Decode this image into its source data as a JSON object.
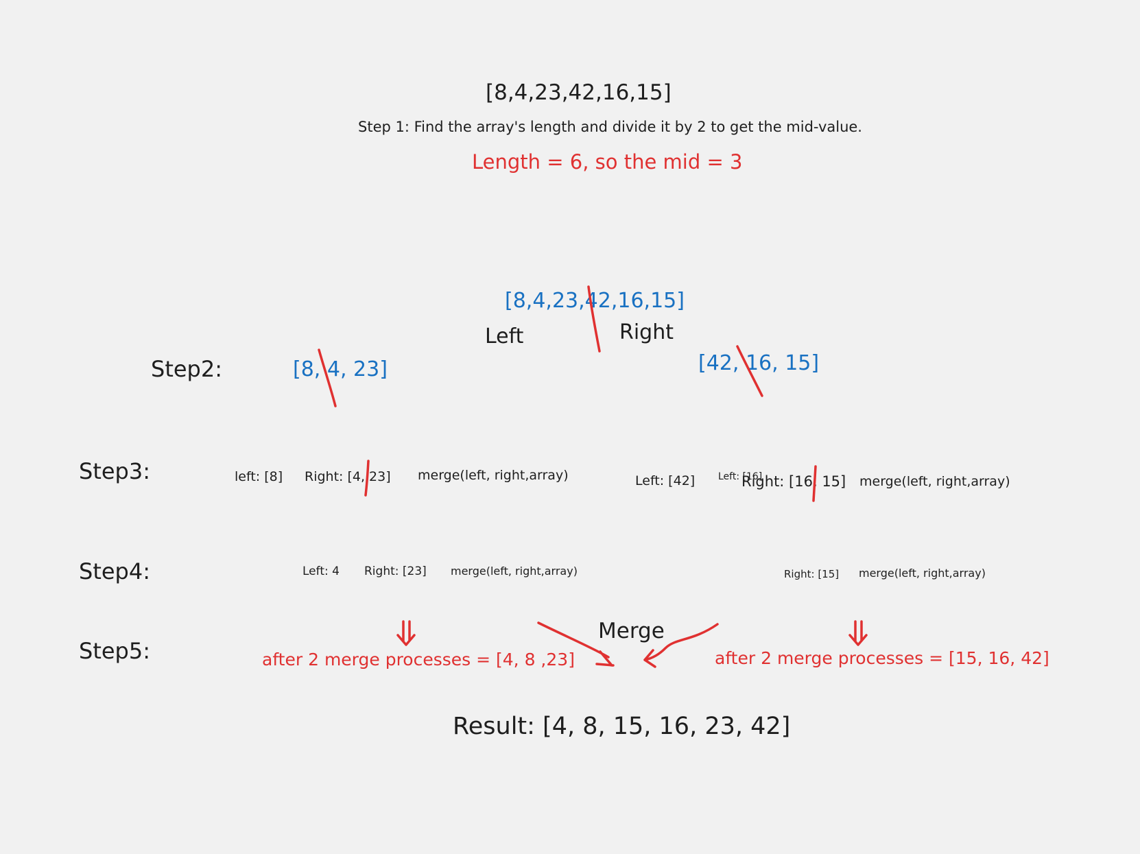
{
  "header": {
    "array": "[8,4,23,42,16,15]",
    "step1": "Step 1: Find the array's length and divide it by 2 to get the mid-value.",
    "mid_note": "Length = 6, so the mid = 3"
  },
  "split": {
    "array": "[8,4,23,42,16,15]",
    "left_label": "Left",
    "right_label": "Right"
  },
  "step2": {
    "label": "Step2:",
    "left_array": "[8, 4, 23]",
    "right_array": "[42, 16, 15]"
  },
  "step3": {
    "label": "Step3:",
    "left_group": {
      "left": "left: [8]",
      "right": "Right: [4, 23]",
      "merge": "merge(left, right,array)"
    },
    "right_group": {
      "left": "Left: [42]",
      "overlap": "Left: [16]",
      "right": "Right: [16, 15]",
      "merge": "merge(left, right,array)"
    }
  },
  "step4": {
    "label": "Step4:",
    "left_group": {
      "left": "Left: 4",
      "right": "Right: [23]",
      "merge": "merge(left, right,array)"
    },
    "right_group": {
      "right": "Right: [15]",
      "merge": "merge(left, right,array)"
    }
  },
  "step5": {
    "label": "Step5:",
    "merge_label": "Merge",
    "left_result": "after 2 merge processes = [4, 8 ,23]",
    "right_result": "after 2 merge processes = [15, 16, 42]"
  },
  "result": "Result: [4, 8, 15, 16, 23, 42]",
  "colors": {
    "background": "#f1f1f1",
    "text": "#1e1e1e",
    "blue": "#1971c2",
    "red": "#e03131"
  }
}
